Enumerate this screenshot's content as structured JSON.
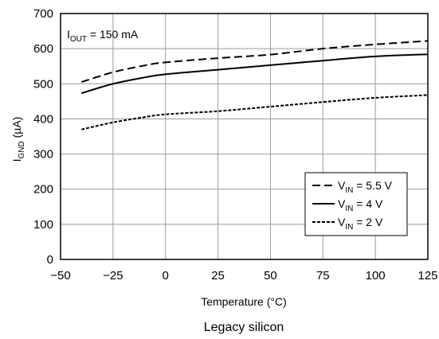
{
  "chart_data": {
    "type": "line",
    "xlabel": "Temperature (°C)",
    "ylabel": {
      "main": "I",
      "sub": "GND",
      "unit": " (µA)"
    },
    "annotation": {
      "main": "I",
      "sub": "OUT",
      "rest": " = 150 mA"
    },
    "caption": "Legacy silicon",
    "xlim": [
      -50,
      125
    ],
    "ylim": [
      0,
      700
    ],
    "x_ticks": [
      -50,
      -25,
      0,
      25,
      50,
      75,
      100,
      125
    ],
    "x_tick_labels": [
      "−50",
      "−25",
      "0",
      "25",
      "50",
      "75",
      "100",
      "125"
    ],
    "y_ticks": [
      0,
      100,
      200,
      300,
      400,
      500,
      600,
      700
    ],
    "y_tick_labels": [
      "0",
      "100",
      "200",
      "300",
      "400",
      "500",
      "600",
      "700"
    ],
    "grid": true,
    "legend_position": "lower-right",
    "series": [
      {
        "legend": {
          "main": "V",
          "sub": "IN",
          "rest": " = 5.5 V"
        },
        "style": "dashed",
        "points": [
          [
            -40,
            505
          ],
          [
            -25,
            533
          ],
          [
            -10,
            552
          ],
          [
            0,
            561
          ],
          [
            25,
            573
          ],
          [
            50,
            583
          ],
          [
            75,
            600
          ],
          [
            100,
            612
          ],
          [
            125,
            622
          ]
        ]
      },
      {
        "legend": {
          "main": "V",
          "sub": "IN",
          "rest": " = 4 V"
        },
        "style": "solid",
        "points": [
          [
            -40,
            473
          ],
          [
            -25,
            500
          ],
          [
            -10,
            518
          ],
          [
            0,
            527
          ],
          [
            25,
            540
          ],
          [
            50,
            553
          ],
          [
            75,
            566
          ],
          [
            100,
            578
          ],
          [
            125,
            584
          ]
        ]
      },
      {
        "legend": {
          "main": "V",
          "sub": "IN",
          "rest": " = 2 V"
        },
        "style": "dotted",
        "points": [
          [
            -40,
            370
          ],
          [
            -25,
            390
          ],
          [
            -10,
            405
          ],
          [
            0,
            413
          ],
          [
            25,
            422
          ],
          [
            50,
            435
          ],
          [
            75,
            448
          ],
          [
            100,
            460
          ],
          [
            125,
            468
          ]
        ]
      }
    ]
  }
}
